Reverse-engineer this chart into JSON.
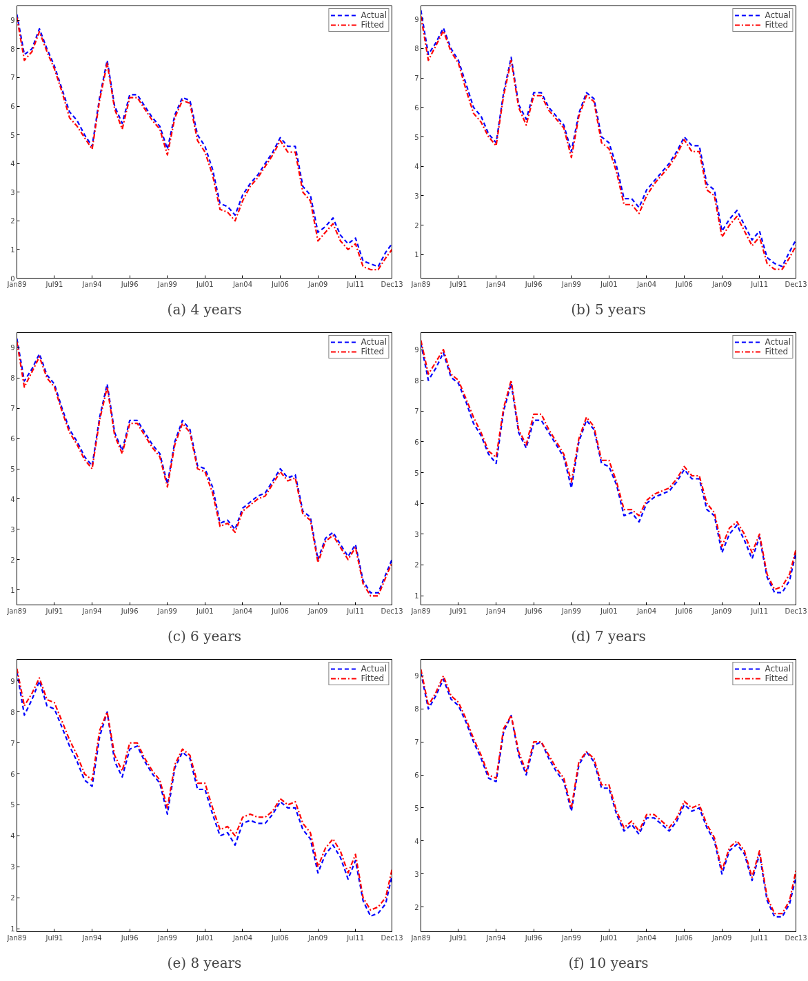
{
  "chart_data": [
    {
      "type": "line",
      "title": "(a) 4 years",
      "x": [
        "1989-01",
        "1989-07",
        "1990-01",
        "1990-07",
        "1991-01",
        "1991-07",
        "1992-01",
        "1992-07",
        "1993-01",
        "1993-07",
        "1994-01",
        "1994-07",
        "1995-01",
        "1995-07",
        "1996-01",
        "1996-07",
        "1997-01",
        "1997-07",
        "1998-01",
        "1998-07",
        "1999-01",
        "1999-07",
        "2000-01",
        "2000-07",
        "2001-01",
        "2001-07",
        "2002-01",
        "2002-07",
        "2003-01",
        "2003-07",
        "2004-01",
        "2004-07",
        "2005-01",
        "2005-07",
        "2006-01",
        "2006-07",
        "2007-01",
        "2007-07",
        "2008-01",
        "2008-07",
        "2009-01",
        "2009-07",
        "2010-01",
        "2010-07",
        "2011-01",
        "2011-07",
        "2012-01",
        "2012-07",
        "2013-01",
        "2013-07",
        "2013-12"
      ],
      "series": [
        {
          "name": "Actual",
          "color": "#0000ff",
          "line_style": "dashed",
          "values": [
            9.2,
            7.8,
            8.0,
            8.7,
            8.0,
            7.4,
            6.6,
            5.8,
            5.5,
            5.0,
            4.6,
            6.3,
            7.6,
            6.0,
            5.4,
            6.4,
            6.4,
            6.0,
            5.6,
            5.3,
            4.5,
            5.7,
            6.3,
            6.2,
            5.0,
            4.6,
            3.8,
            2.6,
            2.5,
            2.2,
            2.9,
            3.3,
            3.6,
            4.0,
            4.4,
            4.9,
            4.6,
            4.6,
            3.2,
            2.9,
            1.6,
            1.8,
            2.1,
            1.5,
            1.2,
            1.4,
            0.6,
            0.5,
            0.4,
            0.9,
            1.2
          ]
        },
        {
          "name": "Fitted",
          "color": "#ff0000",
          "line_style": "dashdot",
          "values": [
            9.1,
            7.6,
            7.9,
            8.6,
            7.9,
            7.3,
            6.5,
            5.6,
            5.3,
            4.9,
            4.5,
            6.2,
            7.5,
            5.9,
            5.2,
            6.3,
            6.3,
            5.9,
            5.5,
            5.2,
            4.3,
            5.6,
            6.2,
            6.1,
            4.8,
            4.4,
            3.6,
            2.4,
            2.3,
            2.0,
            2.7,
            3.2,
            3.5,
            3.9,
            4.3,
            4.8,
            4.4,
            4.4,
            3.0,
            2.7,
            1.3,
            1.6,
            1.9,
            1.3,
            1.0,
            1.2,
            0.4,
            0.3,
            0.3,
            0.7,
            1.0
          ]
        }
      ],
      "xlim": [
        "1989-01",
        "2013-12"
      ],
      "ylim": [
        0,
        9.5
      ],
      "yticks": [
        0,
        1,
        2,
        3,
        4,
        5,
        6,
        7,
        8,
        9
      ],
      "xticks": [
        {
          "value": "1989-01",
          "label": "Jan89"
        },
        {
          "value": "1991-07",
          "label": "Jul91"
        },
        {
          "value": "1994-01",
          "label": "Jan94"
        },
        {
          "value": "1996-07",
          "label": "Jul96"
        },
        {
          "value": "1999-01",
          "label": "Jan99"
        },
        {
          "value": "2001-07",
          "label": "Jul01"
        },
        {
          "value": "2004-01",
          "label": "Jan04"
        },
        {
          "value": "2006-07",
          "label": "Jul06"
        },
        {
          "value": "2009-01",
          "label": "Jan09"
        },
        {
          "value": "2011-07",
          "label": "Jul11"
        },
        {
          "value": "2013-12",
          "label": "Dec13"
        }
      ],
      "legend": "top right",
      "grid": false,
      "marker": "none"
    },
    {
      "type": "line",
      "title": "(b) 5 years",
      "x": [
        "1989-01",
        "1989-07",
        "1990-01",
        "1990-07",
        "1991-01",
        "1991-07",
        "1992-01",
        "1992-07",
        "1993-01",
        "1993-07",
        "1994-01",
        "1994-07",
        "1995-01",
        "1995-07",
        "1996-01",
        "1996-07",
        "1997-01",
        "1997-07",
        "1998-01",
        "1998-07",
        "1999-01",
        "1999-07",
        "2000-01",
        "2000-07",
        "2001-01",
        "2001-07",
        "2002-01",
        "2002-07",
        "2003-01",
        "2003-07",
        "2004-01",
        "2004-07",
        "2005-01",
        "2005-07",
        "2006-01",
        "2006-07",
        "2007-01",
        "2007-07",
        "2008-01",
        "2008-07",
        "2009-01",
        "2009-07",
        "2010-01",
        "2010-07",
        "2011-01",
        "2011-07",
        "2012-01",
        "2012-07",
        "2013-01",
        "2013-07",
        "2013-12"
      ],
      "series": [
        {
          "name": "Actual",
          "color": "#0000ff",
          "line_style": "dashed",
          "values": [
            9.3,
            7.8,
            8.2,
            8.7,
            8.0,
            7.6,
            6.8,
            6.0,
            5.7,
            5.1,
            4.8,
            6.5,
            7.7,
            6.1,
            5.6,
            6.5,
            6.5,
            6.0,
            5.7,
            5.4,
            4.5,
            5.8,
            6.5,
            6.3,
            5.0,
            4.8,
            4.0,
            2.9,
            2.9,
            2.6,
            3.2,
            3.5,
            3.8,
            4.1,
            4.5,
            5.0,
            4.7,
            4.7,
            3.4,
            3.2,
            1.8,
            2.2,
            2.5,
            2.0,
            1.5,
            1.8,
            0.9,
            0.7,
            0.6,
            1.1,
            1.5
          ]
        },
        {
          "name": "Fitted",
          "color": "#ff0000",
          "line_style": "dashdot",
          "values": [
            9.1,
            7.6,
            8.1,
            8.6,
            7.9,
            7.5,
            6.6,
            5.8,
            5.5,
            5.0,
            4.7,
            6.4,
            7.6,
            6.0,
            5.4,
            6.4,
            6.4,
            5.9,
            5.6,
            5.3,
            4.3,
            5.7,
            6.4,
            6.2,
            4.8,
            4.6,
            3.8,
            2.7,
            2.7,
            2.4,
            3.0,
            3.4,
            3.7,
            4.0,
            4.4,
            4.9,
            4.5,
            4.5,
            3.2,
            3.0,
            1.6,
            2.0,
            2.3,
            1.8,
            1.3,
            1.6,
            0.7,
            0.5,
            0.5,
            0.9,
            1.3
          ]
        }
      ],
      "xlim": [
        "1989-01",
        "2013-12"
      ],
      "ylim": [
        0.2,
        9.45
      ],
      "yticks": [
        1,
        2,
        3,
        4,
        5,
        6,
        7,
        8,
        9
      ],
      "xticks": [
        {
          "value": "1989-01",
          "label": "Jan89"
        },
        {
          "value": "1991-07",
          "label": "Jul91"
        },
        {
          "value": "1994-01",
          "label": "Jan94"
        },
        {
          "value": "1996-07",
          "label": "Jul96"
        },
        {
          "value": "1999-01",
          "label": "Jan99"
        },
        {
          "value": "2001-07",
          "label": "Jul01"
        },
        {
          "value": "2004-01",
          "label": "Jan04"
        },
        {
          "value": "2006-07",
          "label": "Jul06"
        },
        {
          "value": "2009-01",
          "label": "Jan09"
        },
        {
          "value": "2011-07",
          "label": "Jul11"
        },
        {
          "value": "2013-12",
          "label": "Dec13"
        }
      ],
      "legend": "top right",
      "grid": false,
      "marker": "none"
    },
    {
      "type": "line",
      "title": "(c) 6 years",
      "x": [
        "1989-01",
        "1989-07",
        "1990-01",
        "1990-07",
        "1991-01",
        "1991-07",
        "1992-01",
        "1992-07",
        "1993-01",
        "1993-07",
        "1994-01",
        "1994-07",
        "1995-01",
        "1995-07",
        "1996-01",
        "1996-07",
        "1997-01",
        "1997-07",
        "1998-01",
        "1998-07",
        "1999-01",
        "1999-07",
        "2000-01",
        "2000-07",
        "2001-01",
        "2001-07",
        "2002-01",
        "2002-07",
        "2003-01",
        "2003-07",
        "2004-01",
        "2004-07",
        "2005-01",
        "2005-07",
        "2006-01",
        "2006-07",
        "2007-01",
        "2007-07",
        "2008-01",
        "2008-07",
        "2009-01",
        "2009-07",
        "2010-01",
        "2010-07",
        "2011-01",
        "2011-07",
        "2012-01",
        "2012-07",
        "2013-01",
        "2013-07",
        "2013-12"
      ],
      "series": [
        {
          "name": "Actual",
          "color": "#0000ff",
          "line_style": "dashed",
          "values": [
            9.3,
            7.9,
            8.3,
            8.8,
            8.1,
            7.8,
            7.0,
            6.3,
            5.9,
            5.4,
            5.1,
            6.7,
            7.8,
            6.2,
            5.6,
            6.6,
            6.6,
            6.2,
            5.8,
            5.5,
            4.5,
            5.9,
            6.6,
            6.3,
            5.1,
            5.0,
            4.4,
            3.2,
            3.3,
            3.0,
            3.7,
            3.9,
            4.1,
            4.2,
            4.6,
            5.0,
            4.7,
            4.8,
            3.6,
            3.4,
            2.0,
            2.7,
            2.9,
            2.5,
            2.1,
            2.5,
            1.3,
            0.9,
            0.9,
            1.5,
            2.0
          ]
        },
        {
          "name": "Fitted",
          "color": "#ff0000",
          "line_style": "dashdot",
          "values": [
            9.2,
            7.7,
            8.2,
            8.7,
            8.0,
            7.7,
            6.9,
            6.2,
            5.8,
            5.3,
            5.0,
            6.6,
            7.7,
            6.1,
            5.5,
            6.5,
            6.5,
            6.1,
            5.7,
            5.4,
            4.4,
            5.8,
            6.5,
            6.2,
            5.0,
            4.9,
            4.2,
            3.1,
            3.2,
            2.9,
            3.6,
            3.8,
            4.0,
            4.1,
            4.5,
            4.9,
            4.6,
            4.7,
            3.5,
            3.3,
            1.9,
            2.6,
            2.8,
            2.4,
            2.0,
            2.4,
            1.2,
            0.8,
            0.8,
            1.4,
            1.9
          ]
        }
      ],
      "xlim": [
        "1989-01",
        "2013-12"
      ],
      "ylim": [
        0.5,
        9.5
      ],
      "yticks": [
        1,
        2,
        3,
        4,
        5,
        6,
        7,
        8,
        9
      ],
      "xticks": [
        {
          "value": "1989-01",
          "label": "Jan89"
        },
        {
          "value": "1991-07",
          "label": "Jul91"
        },
        {
          "value": "1994-01",
          "label": "Jan94"
        },
        {
          "value": "1996-07",
          "label": "Jul96"
        },
        {
          "value": "1999-01",
          "label": "Jan99"
        },
        {
          "value": "2001-07",
          "label": "Jul01"
        },
        {
          "value": "2004-01",
          "label": "Jan04"
        },
        {
          "value": "2006-07",
          "label": "Jul06"
        },
        {
          "value": "2009-01",
          "label": "Jan09"
        },
        {
          "value": "2011-07",
          "label": "Jul11"
        },
        {
          "value": "2013-12",
          "label": "Dec13"
        }
      ],
      "legend": "top right",
      "grid": false,
      "marker": "none"
    },
    {
      "type": "line",
      "title": "(d) 7 years",
      "x": [
        "1989-01",
        "1989-07",
        "1990-01",
        "1990-07",
        "1991-01",
        "1991-07",
        "1992-01",
        "1992-07",
        "1993-01",
        "1993-07",
        "1994-01",
        "1994-07",
        "1995-01",
        "1995-07",
        "1996-01",
        "1996-07",
        "1997-01",
        "1997-07",
        "1998-01",
        "1998-07",
        "1999-01",
        "1999-07",
        "2000-01",
        "2000-07",
        "2001-01",
        "2001-07",
        "2002-01",
        "2002-07",
        "2003-01",
        "2003-07",
        "2004-01",
        "2004-07",
        "2005-01",
        "2005-07",
        "2006-01",
        "2006-07",
        "2007-01",
        "2007-07",
        "2008-01",
        "2008-07",
        "2009-01",
        "2009-07",
        "2010-01",
        "2010-07",
        "2011-01",
        "2011-07",
        "2012-01",
        "2012-07",
        "2013-01",
        "2013-07",
        "2013-12"
      ],
      "series": [
        {
          "name": "Actual",
          "color": "#0000ff",
          "line_style": "dashed",
          "values": [
            9.2,
            8.0,
            8.4,
            8.9,
            8.1,
            7.9,
            7.3,
            6.6,
            6.2,
            5.6,
            5.3,
            7.0,
            7.9,
            6.3,
            5.8,
            6.7,
            6.7,
            6.3,
            5.9,
            5.5,
            4.5,
            6.0,
            6.7,
            6.4,
            5.3,
            5.2,
            4.6,
            3.6,
            3.7,
            3.4,
            4.0,
            4.2,
            4.3,
            4.4,
            4.7,
            5.1,
            4.8,
            4.8,
            3.8,
            3.6,
            2.4,
            3.0,
            3.3,
            2.8,
            2.2,
            2.9,
            1.6,
            1.1,
            1.1,
            1.5,
            2.4
          ]
        },
        {
          "name": "Fitted",
          "color": "#ff0000",
          "line_style": "dashdot",
          "values": [
            9.3,
            8.2,
            8.6,
            9.0,
            8.2,
            8.0,
            7.4,
            6.8,
            6.3,
            5.7,
            5.5,
            7.1,
            8.0,
            6.4,
            5.9,
            6.9,
            6.9,
            6.4,
            6.0,
            5.6,
            4.7,
            6.1,
            6.8,
            6.5,
            5.4,
            5.4,
            4.7,
            3.8,
            3.8,
            3.6,
            4.1,
            4.3,
            4.4,
            4.5,
            4.8,
            5.2,
            4.9,
            4.9,
            4.0,
            3.7,
            2.6,
            3.2,
            3.4,
            3.0,
            2.4,
            3.0,
            1.7,
            1.2,
            1.3,
            1.7,
            2.5
          ]
        }
      ],
      "xlim": [
        "1989-01",
        "2013-12"
      ],
      "ylim": [
        0.7,
        9.55
      ],
      "yticks": [
        1,
        2,
        3,
        4,
        5,
        6,
        7,
        8,
        9
      ],
      "xticks": [
        {
          "value": "1989-01",
          "label": "Jan89"
        },
        {
          "value": "1991-07",
          "label": "Jul91"
        },
        {
          "value": "1994-01",
          "label": "Jan94"
        },
        {
          "value": "1996-07",
          "label": "Jul96"
        },
        {
          "value": "1999-01",
          "label": "Jan99"
        },
        {
          "value": "2001-07",
          "label": "Jul01"
        },
        {
          "value": "2004-01",
          "label": "Jan04"
        },
        {
          "value": "2006-07",
          "label": "Jul06"
        },
        {
          "value": "2009-01",
          "label": "Jan09"
        },
        {
          "value": "2011-07",
          "label": "Jul11"
        },
        {
          "value": "2013-12",
          "label": "Dec13"
        }
      ],
      "legend": "top right",
      "grid": false,
      "marker": "none"
    },
    {
      "type": "line",
      "title": "(e) 8 years",
      "x": [
        "1989-01",
        "1989-07",
        "1990-01",
        "1990-07",
        "1991-01",
        "1991-07",
        "1992-01",
        "1992-07",
        "1993-01",
        "1993-07",
        "1994-01",
        "1994-07",
        "1995-01",
        "1995-07",
        "1996-01",
        "1996-07",
        "1997-01",
        "1997-07",
        "1998-01",
        "1998-07",
        "1999-01",
        "1999-07",
        "2000-01",
        "2000-07",
        "2001-01",
        "2001-07",
        "2002-01",
        "2002-07",
        "2003-01",
        "2003-07",
        "2004-01",
        "2004-07",
        "2005-01",
        "2005-07",
        "2006-01",
        "2006-07",
        "2007-01",
        "2007-07",
        "2008-01",
        "2008-07",
        "2009-01",
        "2009-07",
        "2010-01",
        "2010-07",
        "2011-01",
        "2011-07",
        "2012-01",
        "2012-07",
        "2013-01",
        "2013-07",
        "2013-12"
      ],
      "series": [
        {
          "name": "Actual",
          "color": "#0000ff",
          "line_style": "dashed",
          "values": [
            9.3,
            7.9,
            8.4,
            9.0,
            8.2,
            8.1,
            7.5,
            6.9,
            6.4,
            5.8,
            5.6,
            7.2,
            8.0,
            6.4,
            5.9,
            6.8,
            6.9,
            6.4,
            6.0,
            5.7,
            4.7,
            6.2,
            6.7,
            6.5,
            5.5,
            5.5,
            4.7,
            4.0,
            4.1,
            3.7,
            4.4,
            4.5,
            4.4,
            4.4,
            4.7,
            5.1,
            4.9,
            4.9,
            4.2,
            3.9,
            2.8,
            3.4,
            3.7,
            3.3,
            2.6,
            3.2,
            1.9,
            1.4,
            1.5,
            1.8,
            2.7
          ]
        },
        {
          "name": "Fitted",
          "color": "#ff0000",
          "line_style": "dashdot",
          "values": [
            9.4,
            8.2,
            8.6,
            9.1,
            8.4,
            8.3,
            7.7,
            7.1,
            6.6,
            6.0,
            5.8,
            7.4,
            8.0,
            6.6,
            6.1,
            7.0,
            7.0,
            6.5,
            6.1,
            5.8,
            4.9,
            6.3,
            6.8,
            6.6,
            5.7,
            5.7,
            4.9,
            4.2,
            4.3,
            4.0,
            4.6,
            4.7,
            4.6,
            4.6,
            4.8,
            5.2,
            5.0,
            5.1,
            4.4,
            4.1,
            3.0,
            3.6,
            3.9,
            3.5,
            2.8,
            3.4,
            2.0,
            1.6,
            1.7,
            2.0,
            2.9
          ]
        }
      ],
      "xlim": [
        "1989-01",
        "2013-12"
      ],
      "ylim": [
        0.9,
        9.7
      ],
      "yticks": [
        1,
        2,
        3,
        4,
        5,
        6,
        7,
        8,
        9
      ],
      "xticks": [
        {
          "value": "1989-01",
          "label": "Jan89"
        },
        {
          "value": "1991-07",
          "label": "Jul91"
        },
        {
          "value": "1994-01",
          "label": "Jan94"
        },
        {
          "value": "1996-07",
          "label": "Jul96"
        },
        {
          "value": "1999-01",
          "label": "Jan99"
        },
        {
          "value": "2001-07",
          "label": "Jul01"
        },
        {
          "value": "2004-01",
          "label": "Jan04"
        },
        {
          "value": "2006-07",
          "label": "Jul06"
        },
        {
          "value": "2009-01",
          "label": "Jan09"
        },
        {
          "value": "2011-07",
          "label": "Jul11"
        },
        {
          "value": "2013-12",
          "label": "Dec13"
        }
      ],
      "legend": "top right",
      "grid": false,
      "marker": "none"
    },
    {
      "type": "line",
      "title": "(f) 10 years",
      "x": [
        "1989-01",
        "1989-07",
        "1990-01",
        "1990-07",
        "1991-01",
        "1991-07",
        "1992-01",
        "1992-07",
        "1993-01",
        "1993-07",
        "1994-01",
        "1994-07",
        "1995-01",
        "1995-07",
        "1996-01",
        "1996-07",
        "1997-01",
        "1997-07",
        "1998-01",
        "1998-07",
        "1999-01",
        "1999-07",
        "2000-01",
        "2000-07",
        "2001-01",
        "2001-07",
        "2002-01",
        "2002-07",
        "2003-01",
        "2003-07",
        "2004-01",
        "2004-07",
        "2005-01",
        "2005-07",
        "2006-01",
        "2006-07",
        "2007-01",
        "2007-07",
        "2008-01",
        "2008-07",
        "2009-01",
        "2009-07",
        "2010-01",
        "2010-07",
        "2011-01",
        "2011-07",
        "2012-01",
        "2012-07",
        "2013-01",
        "2013-07",
        "2013-12"
      ],
      "series": [
        {
          "name": "Actual",
          "color": "#0000ff",
          "line_style": "dashed",
          "values": [
            9.1,
            8.0,
            8.4,
            8.9,
            8.3,
            8.1,
            7.6,
            7.0,
            6.5,
            5.9,
            5.8,
            7.3,
            7.8,
            6.6,
            6.0,
            6.9,
            7.0,
            6.5,
            6.1,
            5.8,
            4.9,
            6.3,
            6.7,
            6.4,
            5.6,
            5.6,
            4.8,
            4.3,
            4.5,
            4.2,
            4.7,
            4.7,
            4.5,
            4.3,
            4.6,
            5.1,
            4.9,
            5.0,
            4.4,
            4.0,
            3.0,
            3.7,
            3.9,
            3.6,
            2.8,
            3.6,
            2.2,
            1.7,
            1.7,
            2.1,
            2.9
          ]
        },
        {
          "name": "Fitted",
          "color": "#ff0000",
          "line_style": "dashdot",
          "values": [
            9.2,
            8.1,
            8.5,
            9.0,
            8.4,
            8.2,
            7.7,
            7.1,
            6.6,
            6.0,
            5.9,
            7.4,
            7.8,
            6.7,
            6.1,
            7.0,
            7.0,
            6.6,
            6.2,
            5.9,
            5.0,
            6.4,
            6.7,
            6.5,
            5.7,
            5.7,
            4.9,
            4.4,
            4.6,
            4.3,
            4.8,
            4.8,
            4.6,
            4.4,
            4.7,
            5.2,
            5.0,
            5.1,
            4.5,
            4.1,
            3.1,
            3.8,
            4.0,
            3.7,
            2.9,
            3.7,
            2.3,
            1.8,
            1.8,
            2.2,
            3.1
          ]
        }
      ],
      "xlim": [
        "1989-01",
        "2013-12"
      ],
      "ylim": [
        1.25,
        9.5
      ],
      "yticks": [
        2,
        3,
        4,
        5,
        6,
        7,
        8,
        9
      ],
      "xticks": [
        {
          "value": "1989-01",
          "label": "Jan89"
        },
        {
          "value": "1991-07",
          "label": "Jul91"
        },
        {
          "value": "1994-01",
          "label": "Jan94"
        },
        {
          "value": "1996-07",
          "label": "Jul96"
        },
        {
          "value": "1999-01",
          "label": "Jan99"
        },
        {
          "value": "2001-07",
          "label": "Jul01"
        },
        {
          "value": "2004-01",
          "label": "Jan04"
        },
        {
          "value": "2006-07",
          "label": "Jul06"
        },
        {
          "value": "2009-01",
          "label": "Jan09"
        },
        {
          "value": "2011-07",
          "label": "Jul11"
        },
        {
          "value": "2013-12",
          "label": "Dec13"
        }
      ],
      "legend": "top right",
      "grid": false,
      "marker": "none"
    }
  ]
}
